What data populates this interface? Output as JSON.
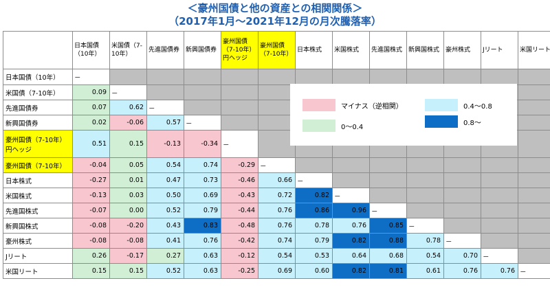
{
  "title_line1": "＜豪州国債と他の資産との相関関係＞",
  "title_line2": "（2017年1月～2021年12月の月次騰落率）",
  "columns": [
    {
      "label": "日本国債（10年）",
      "highlight": false
    },
    {
      "label": "米国債（7-10年）",
      "highlight": false
    },
    {
      "label": "先進国債券",
      "highlight": false
    },
    {
      "label": "新興国債券",
      "highlight": false
    },
    {
      "label": "豪州国債（7-10年）円ヘッジ",
      "highlight": true
    },
    {
      "label": "豪州国債（7-10年）",
      "highlight": true
    },
    {
      "label": "日本株式",
      "highlight": false
    },
    {
      "label": "米国株式",
      "highlight": false
    },
    {
      "label": "先進国株式",
      "highlight": false
    },
    {
      "label": "新興国株式",
      "highlight": false
    },
    {
      "label": "豪州株式",
      "highlight": false
    },
    {
      "label": "Jリート",
      "highlight": false
    },
    {
      "label": "米国リート",
      "highlight": false
    }
  ],
  "rows": [
    {
      "label": "日本国債（10年）",
      "highlight": false
    },
    {
      "label": "米国債（7-10年）",
      "highlight": false
    },
    {
      "label": "先進国債券",
      "highlight": false
    },
    {
      "label": "新興国債券",
      "highlight": false
    },
    {
      "label": "豪州国債（7-10年）円ヘッジ",
      "highlight": true
    },
    {
      "label": "豪州国債（7-10年）",
      "highlight": true
    },
    {
      "label": "日本株式",
      "highlight": false
    },
    {
      "label": "米国株式",
      "highlight": false
    },
    {
      "label": "先進国株式",
      "highlight": false
    },
    {
      "label": "新興国株式",
      "highlight": false
    },
    {
      "label": "豪州株式",
      "highlight": false
    },
    {
      "label": "Jリート",
      "highlight": false
    },
    {
      "label": "米国リート",
      "highlight": false
    }
  ],
  "diagonal_label": "－",
  "legend": [
    {
      "label": "マイナス（逆相関）",
      "color": "#f7c6cf"
    },
    {
      "label": "0.4～0.8",
      "color": "#c6f0fb"
    },
    {
      "label": "0～0.4",
      "color": "#d0efd5"
    },
    {
      "label": "0.8～",
      "color": "#0e6dc4"
    }
  ],
  "colors": {
    "title": "#1f5fb0",
    "highlight": "#ffff00",
    "upper_triangle": "#bfbfbf",
    "negative": "#f7c6cf",
    "low": "#d0efd5",
    "mid": "#c6f0fb",
    "high": "#0e6dc4"
  },
  "chart_data": {
    "type": "table",
    "title": "豪州国債と他の資産との相関関係",
    "subtitle": "2017年1月～2021年12月の月次騰落率",
    "lower_triangle": [
      [],
      [
        0.09
      ],
      [
        0.07,
        0.62
      ],
      [
        0.02,
        -0.06,
        0.57
      ],
      [
        0.51,
        0.15,
        -0.13,
        -0.34
      ],
      [
        -0.04,
        0.05,
        0.54,
        0.74,
        -0.29
      ],
      [
        -0.27,
        0.01,
        0.47,
        0.73,
        -0.46,
        0.66
      ],
      [
        -0.13,
        0.03,
        0.5,
        0.69,
        -0.43,
        0.72,
        0.82
      ],
      [
        -0.07,
        0.0,
        0.52,
        0.79,
        -0.44,
        0.76,
        0.86,
        0.96
      ],
      [
        -0.08,
        -0.2,
        0.43,
        0.83,
        -0.48,
        0.76,
        0.78,
        0.76,
        0.85
      ],
      [
        -0.08,
        -0.08,
        0.41,
        0.76,
        -0.42,
        0.74,
        0.79,
        0.82,
        0.88,
        0.78
      ],
      [
        0.26,
        -0.17,
        0.27,
        0.63,
        -0.12,
        0.54,
        0.53,
        0.64,
        0.68,
        0.54,
        0.7
      ],
      [
        0.15,
        0.15,
        0.52,
        0.63,
        -0.25,
        0.69,
        0.6,
        0.82,
        0.81,
        0.61,
        0.76,
        0.76
      ]
    ]
  }
}
